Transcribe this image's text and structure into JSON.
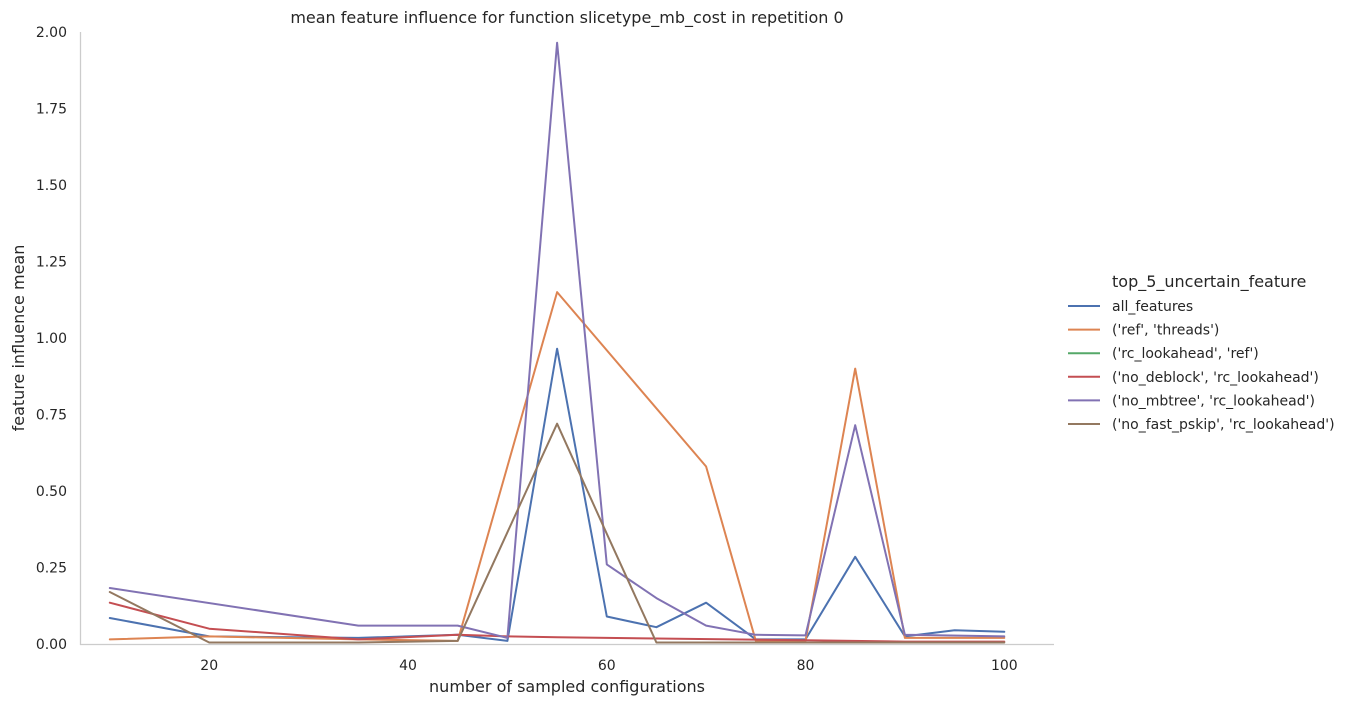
{
  "chart_data": {
    "type": "line",
    "title": "mean feature influence for function slicetype_mb_cost in repetition 0",
    "xlabel": "number of sampled configurations",
    "ylabel": "feature influence mean",
    "xlim": [
      7,
      105
    ],
    "ylim": [
      0,
      2.0
    ],
    "xticks": [
      20,
      40,
      60,
      80,
      100
    ],
    "yticks": [
      0.0,
      0.25,
      0.5,
      0.75,
      1.0,
      1.25,
      1.5,
      1.75,
      2.0
    ],
    "ytick_labels": [
      "0.00",
      "0.25",
      "0.50",
      "0.75",
      "1.00",
      "1.25",
      "1.50",
      "1.75",
      "2.00"
    ],
    "grid": false,
    "legend": {
      "title": "top_5_uncertain_feature",
      "placement": "right"
    },
    "series": [
      {
        "name": "all_features",
        "color": "#4c72b0",
        "points": [
          [
            10,
            0.085
          ],
          [
            20,
            0.025
          ],
          [
            35,
            0.02
          ],
          [
            45,
            0.03
          ],
          [
            50,
            0.01
          ],
          [
            55,
            0.965
          ],
          [
            60,
            0.09
          ],
          [
            65,
            0.055
          ],
          [
            70,
            0.135
          ],
          [
            75,
            0.015
          ],
          [
            80,
            0.015
          ],
          [
            85,
            0.285
          ],
          [
            90,
            0.025
          ],
          [
            95,
            0.045
          ],
          [
            100,
            0.04
          ]
        ]
      },
      {
        "name": "('ref', 'threads')",
        "color": "#dd8452",
        "points": [
          [
            10,
            0.015
          ],
          [
            20,
            0.025
          ],
          [
            35,
            0.015
          ],
          [
            45,
            0.01
          ],
          [
            55,
            1.15
          ],
          [
            70,
            0.58
          ],
          [
            75,
            0.01
          ],
          [
            80,
            0.01
          ],
          [
            85,
            0.9
          ],
          [
            90,
            0.02
          ],
          [
            100,
            0.02
          ]
        ]
      },
      {
        "name": "('rc_lookahead', 'ref')",
        "color": "#55a868",
        "points": []
      },
      {
        "name": "('no_deblock', 'rc_lookahead')",
        "color": "#c44e52",
        "points": [
          [
            10,
            0.135
          ],
          [
            20,
            0.05
          ],
          [
            35,
            0.015
          ],
          [
            45,
            0.03
          ],
          [
            50,
            0.025
          ],
          [
            55,
            0.022
          ],
          [
            60,
            0.02
          ],
          [
            80,
            0.012
          ],
          [
            90,
            0.008
          ],
          [
            100,
            0.008
          ]
        ]
      },
      {
        "name": "('no_mbtree', 'rc_lookahead')",
        "color": "#8172b3",
        "points": [
          [
            10,
            0.183
          ],
          [
            35,
            0.06
          ],
          [
            45,
            0.06
          ],
          [
            50,
            0.02
          ],
          [
            55,
            1.965
          ],
          [
            60,
            0.26
          ],
          [
            65,
            0.15
          ],
          [
            70,
            0.06
          ],
          [
            75,
            0.03
          ],
          [
            80,
            0.028
          ],
          [
            85,
            0.715
          ],
          [
            90,
            0.03
          ],
          [
            100,
            0.025
          ]
        ]
      },
      {
        "name": "('no_fast_pskip', 'rc_lookahead')",
        "color": "#937860",
        "points": [
          [
            10,
            0.17
          ],
          [
            20,
            0.005
          ],
          [
            35,
            0.005
          ],
          [
            45,
            0.01
          ],
          [
            55,
            0.72
          ],
          [
            60,
            0.36
          ],
          [
            65,
            0.005
          ],
          [
            100,
            0.005
          ]
        ]
      }
    ]
  }
}
